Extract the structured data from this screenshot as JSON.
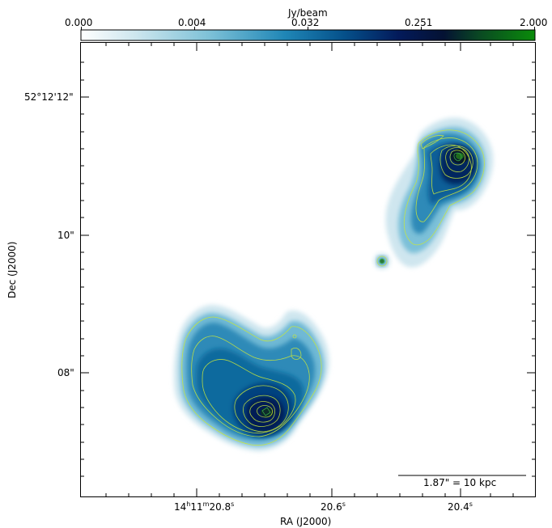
{
  "colorbar": {
    "label": "Jy/beam",
    "ticks": [
      "0.000",
      "0.004",
      "0.032",
      "0.251",
      "2.000"
    ],
    "colors": [
      "#ffffff",
      "#cde6ee",
      "#7fc2d8",
      "#2a8bb8",
      "#06608f",
      "#043a78",
      "#020f4e",
      "#0a2e2a",
      "#0b6e16",
      "#0a8a0a"
    ]
  },
  "axes": {
    "xlabel": "RA (J2000)",
    "ylabel": "Dec (J2000)",
    "xticks": [
      {
        "h": "14",
        "m": "11",
        "s": "20.8"
      },
      {
        "s": "20.6"
      },
      {
        "s": "20.4"
      }
    ],
    "yticks": [
      "52°12'12\"",
      "10\"",
      "08\""
    ]
  },
  "scalebar": {
    "label": "1.87\" = 10 kpc"
  },
  "contour_color": "#c8e63c"
}
